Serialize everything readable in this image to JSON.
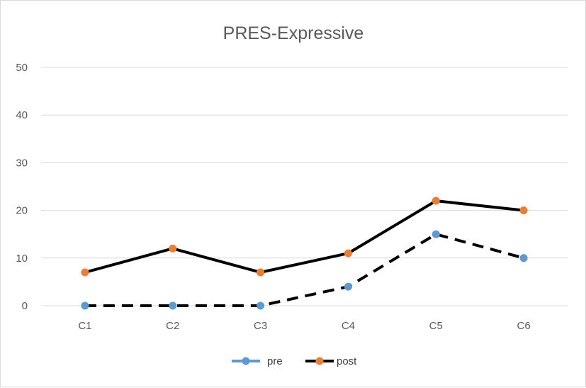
{
  "chart_data": {
    "type": "line",
    "title": "PRES-Expressive",
    "categories": [
      "C1",
      "C2",
      "C3",
      "C4",
      "C5",
      "C6"
    ],
    "series": [
      {
        "name": "pre",
        "values": [
          0,
          0,
          0,
          4,
          15,
          10
        ],
        "line_color": "#000000",
        "marker_color": "#5b9bd5",
        "line_style": "dashed"
      },
      {
        "name": "post",
        "values": [
          7,
          12,
          7,
          11,
          22,
          20
        ],
        "line_color": "#000000",
        "marker_color": "#ed7d31",
        "line_style": "solid"
      }
    ],
    "ylim": [
      0,
      50
    ],
    "yticks": [
      "0",
      "10",
      "20",
      "30",
      "40",
      "50"
    ],
    "grid": true,
    "legend_position": "bottom"
  }
}
